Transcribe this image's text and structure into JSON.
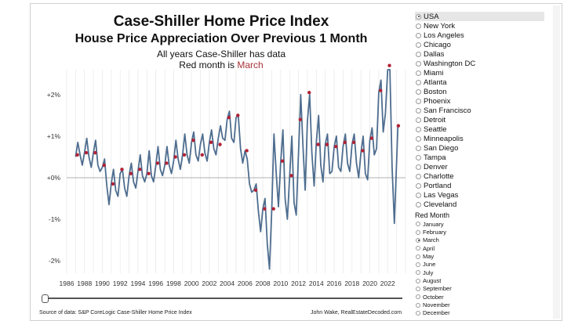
{
  "title": "Case-Shiller Home Price Index",
  "subtitle": "House Price Appreciation Over Previous 1 Month",
  "note1": "All years Case-Shiller has data",
  "note2_prefix": "Red month is ",
  "note2_month": "March",
  "source": "Source of data: S&P CoreLogic Case-Shiller Home Price Index",
  "credit": "John Wake, RealEstateDecoded.com",
  "colors": {
    "line": "#4e6d8f",
    "marker": "#b22235",
    "zero_line": "#b0b0b0",
    "grid": "#e7e7e7"
  },
  "cities": [
    "USA",
    "New York",
    "Los Angeles",
    "Chicago",
    "Dallas",
    "Washington DC",
    "Miami",
    "Atlanta",
    "Boston",
    "Phoenix",
    "San Francisco",
    "Detroit",
    "Seattle",
    "Minneapolis",
    "San Diego",
    "Tampa",
    "Denver",
    "Charlotte",
    "Portland",
    "Las Vegas",
    "Cleveland"
  ],
  "selected_city": "USA",
  "month_header": "Red Month",
  "months": [
    "January",
    "February",
    "March",
    "April",
    "May",
    "June",
    "July",
    "August",
    "September",
    "October",
    "November",
    "December"
  ],
  "selected_month": "March",
  "chart_data": {
    "type": "line",
    "title": "Case-Shiller Home Price Index",
    "subtitle": "House Price Appreciation Over Previous 1 Month",
    "xlabel": "",
    "ylabel": "",
    "x_ticks": [
      "1986",
      "1988",
      "1990",
      "1992",
      "1994",
      "1996",
      "1998",
      "2000",
      "2002",
      "2004",
      "2006",
      "2008",
      "2010",
      "2012",
      "2014",
      "2016",
      "2018",
      "2020",
      "2022"
    ],
    "y_ticks": [
      "+2%",
      "+1%",
      "+0%",
      "-1%",
      "-2%"
    ],
    "ylim": [
      -2.3,
      2.6
    ],
    "xlim": [
      1986,
      2024
    ],
    "grid": "vertical",
    "series": [
      {
        "x": [
          1987.0,
          1987.25,
          1987.5,
          1987.75,
          1988.0,
          1988.25,
          1988.5,
          1988.75,
          1989.0,
          1989.25,
          1989.5,
          1989.75,
          1990.0,
          1990.25,
          1990.5,
          1990.75,
          1991.0,
          1991.25,
          1991.5,
          1991.75,
          1992.0,
          1992.25,
          1992.5,
          1992.75,
          1993.0,
          1993.25,
          1993.5,
          1993.75,
          1994.0,
          1994.25,
          1994.5,
          1994.75,
          1995.0,
          1995.25,
          1995.5,
          1995.75,
          1996.0,
          1996.25,
          1996.5,
          1996.75,
          1997.0,
          1997.25,
          1997.5,
          1997.75,
          1998.0,
          1998.25,
          1998.5,
          1998.75,
          1999.0,
          1999.25,
          1999.5,
          1999.75,
          2000.0,
          2000.25,
          2000.5,
          2000.75,
          2001.0,
          2001.25,
          2001.5,
          2001.75,
          2002.0,
          2002.25,
          2002.5,
          2002.75,
          2003.0,
          2003.25,
          2003.5,
          2003.75,
          2004.0,
          2004.25,
          2004.5,
          2004.75,
          2005.0,
          2005.25,
          2005.5,
          2005.75,
          2006.0,
          2006.25,
          2006.5,
          2006.75,
          2007.0,
          2007.25,
          2007.5,
          2007.75,
          2008.0,
          2008.25,
          2008.5,
          2008.75,
          2009.0,
          2009.25,
          2009.5,
          2009.75,
          2010.0,
          2010.25,
          2010.5,
          2010.75,
          2011.0,
          2011.25,
          2011.5,
          2011.75,
          2012.0,
          2012.25,
          2012.5,
          2012.75,
          2013.0,
          2013.25,
          2013.5,
          2013.75,
          2014.0,
          2014.25,
          2014.5,
          2014.75,
          2015.0,
          2015.25,
          2015.5,
          2015.75,
          2016.0,
          2016.25,
          2016.5,
          2016.75,
          2017.0,
          2017.25,
          2017.5,
          2017.75,
          2018.0,
          2018.25,
          2018.5,
          2018.75,
          2019.0,
          2019.25,
          2019.5,
          2019.75,
          2020.0,
          2020.25,
          2020.5,
          2020.75,
          2021.0,
          2021.25,
          2021.5,
          2021.75,
          2022.0,
          2022.25,
          2022.5,
          2022.75,
          2023.0,
          2023.15
        ],
        "y": [
          0.5,
          0.85,
          0.55,
          0.3,
          0.6,
          0.95,
          0.5,
          0.25,
          0.6,
          0.9,
          0.3,
          0.15,
          0.25,
          0.45,
          -0.2,
          -0.65,
          -0.15,
          0.2,
          -0.3,
          -0.45,
          0.1,
          0.2,
          -0.25,
          -0.45,
          0.05,
          0.35,
          -0.1,
          -0.25,
          0.15,
          0.55,
          0.05,
          -0.1,
          0.1,
          0.65,
          0.05,
          -0.1,
          0.3,
          0.75,
          0.2,
          0.05,
          0.3,
          0.75,
          0.3,
          0.1,
          0.4,
          0.9,
          0.45,
          0.2,
          0.55,
          1.05,
          0.55,
          0.35,
          0.85,
          1.1,
          0.55,
          0.4,
          0.8,
          1.05,
          0.6,
          0.4,
          0.85,
          1.15,
          0.7,
          0.55,
          0.95,
          1.25,
          0.95,
          0.9,
          1.4,
          1.6,
          0.95,
          0.85,
          1.45,
          1.5,
          0.7,
          0.35,
          0.65,
          0.45,
          -0.15,
          -0.35,
          -0.3,
          -0.15,
          -0.8,
          -1.3,
          -0.75,
          -0.5,
          -1.6,
          -2.2,
          -0.75,
          1.05,
          0.1,
          -0.7,
          0.35,
          1.15,
          -0.5,
          -1.0,
          0.0,
          1.0,
          -0.6,
          -0.9,
          0.6,
          2.0,
          0.75,
          -0.3,
          1.35,
          2.0,
          0.6,
          -0.2,
          0.85,
          1.5,
          0.3,
          -0.1,
          0.8,
          1.05,
          0.1,
          0.15,
          0.75,
          1.0,
          0.25,
          0.15,
          0.75,
          1.05,
          0.35,
          0.15,
          0.8,
          1.05,
          0.35,
          0.0,
          0.6,
          1.0,
          0.1,
          -0.05,
          0.9,
          1.2,
          0.55,
          0.7,
          2.05,
          2.35,
          1.1,
          1.55,
          2.6,
          2.6,
          0.25,
          -1.1,
          0.35,
          1.25
        ],
        "markers_x": [
          1987.2,
          1988.2,
          1989.2,
          1990.2,
          1991.2,
          1992.2,
          1993.2,
          1994.2,
          1995.2,
          1996.2,
          1997.2,
          1998.2,
          1999.2,
          2000.2,
          2001.2,
          2002.2,
          2003.2,
          2004.2,
          2005.2,
          2006.2,
          2007.2,
          2008.2,
          2009.2,
          2010.2,
          2011.2,
          2012.2,
          2013.2,
          2014.2,
          2015.2,
          2016.2,
          2017.2,
          2018.2,
          2019.2,
          2020.2,
          2021.2,
          2022.2,
          2023.2
        ],
        "markers_y": [
          0.55,
          0.6,
          0.6,
          0.3,
          -0.15,
          0.2,
          0.1,
          0.2,
          0.1,
          0.35,
          0.35,
          0.5,
          0.55,
          0.9,
          0.55,
          0.85,
          0.8,
          1.45,
          1.5,
          0.65,
          -0.3,
          -0.75,
          -0.75,
          0.4,
          0.05,
          1.4,
          2.05,
          0.8,
          0.8,
          0.75,
          0.85,
          0.85,
          0.65,
          0.95,
          2.1,
          2.7,
          1.25
        ]
      }
    ]
  }
}
